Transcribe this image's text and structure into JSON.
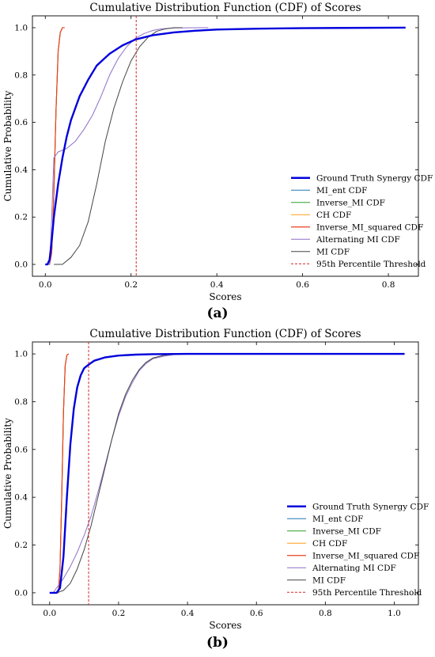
{
  "labels": {
    "panel_a": "(a)",
    "panel_b": "(b)"
  },
  "chart_data": [
    {
      "type": "line",
      "title": "Cumulative Distribution Function (CDF) of Scores",
      "xlabel": "Scores",
      "ylabel": "Cumulative Probability",
      "xlim": [
        -0.03,
        0.87
      ],
      "ylim": [
        -0.05,
        1.05
      ],
      "xticks": [
        0.0,
        0.2,
        0.4,
        0.6,
        0.8
      ],
      "xtick_labels": [
        "0.0",
        "0.2",
        "0.4",
        "0.6",
        "0.8"
      ],
      "yticks": [
        0.0,
        0.2,
        0.4,
        0.6,
        0.8,
        1.0
      ],
      "ytick_labels": [
        "0.0",
        "0.2",
        "0.4",
        "0.6",
        "0.8",
        "1.0"
      ],
      "grid": false,
      "legend_position": "lower right",
      "threshold": {
        "name": "95th Percentile Threshold",
        "x": 0.212,
        "color": "#d62728"
      },
      "series": [
        {
          "name": "Ground Truth Synergy CDF",
          "color": "#0000dd",
          "width": 2.4,
          "points": [
            [
              0.0,
              0.0
            ],
            [
              0.005,
              0.0
            ],
            [
              0.01,
              0.02
            ],
            [
              0.015,
              0.1
            ],
            [
              0.02,
              0.2
            ],
            [
              0.03,
              0.34
            ],
            [
              0.04,
              0.45
            ],
            [
              0.05,
              0.54
            ],
            [
              0.06,
              0.61
            ],
            [
              0.08,
              0.71
            ],
            [
              0.1,
              0.78
            ],
            [
              0.12,
              0.84
            ],
            [
              0.15,
              0.89
            ],
            [
              0.18,
              0.925
            ],
            [
              0.21,
              0.95
            ],
            [
              0.25,
              0.968
            ],
            [
              0.3,
              0.98
            ],
            [
              0.35,
              0.987
            ],
            [
              0.4,
              0.992
            ],
            [
              0.5,
              0.996
            ],
            [
              0.6,
              0.998
            ],
            [
              0.7,
              0.999
            ],
            [
              0.84,
              1.0
            ]
          ]
        },
        {
          "name": "MI_ent CDF",
          "color": "#1f77b4",
          "width": 1.0,
          "points": [
            [
              0.005,
              0.0
            ],
            [
              0.01,
              0.0
            ],
            [
              0.015,
              0.05
            ],
            [
              0.02,
              0.3
            ],
            [
              0.025,
              0.65
            ],
            [
              0.03,
              0.9
            ],
            [
              0.035,
              0.98
            ],
            [
              0.04,
              1.0
            ],
            [
              0.045,
              1.0
            ]
          ]
        },
        {
          "name": "Inverse_MI CDF",
          "color": "#2ca02c",
          "width": 1.0,
          "points": [
            [
              0.005,
              0.0
            ],
            [
              0.01,
              0.0
            ],
            [
              0.015,
              0.05
            ],
            [
              0.02,
              0.3
            ],
            [
              0.025,
              0.65
            ],
            [
              0.03,
              0.9
            ],
            [
              0.035,
              0.98
            ],
            [
              0.04,
              1.0
            ],
            [
              0.045,
              1.0
            ]
          ]
        },
        {
          "name": "CH CDF",
          "color": "#ff9f1c",
          "width": 1.0,
          "points": [
            [
              0.005,
              0.0
            ],
            [
              0.01,
              0.0
            ],
            [
              0.015,
              0.05
            ],
            [
              0.02,
              0.3
            ],
            [
              0.025,
              0.65
            ],
            [
              0.03,
              0.9
            ],
            [
              0.035,
              0.98
            ],
            [
              0.04,
              1.0
            ],
            [
              0.045,
              1.0
            ]
          ]
        },
        {
          "name": "Inverse_MI_squared CDF",
          "color": "#e8421c",
          "width": 1.2,
          "points": [
            [
              0.005,
              0.0
            ],
            [
              0.01,
              0.0
            ],
            [
              0.015,
              0.05
            ],
            [
              0.02,
              0.3
            ],
            [
              0.025,
              0.65
            ],
            [
              0.03,
              0.9
            ],
            [
              0.035,
              0.98
            ],
            [
              0.04,
              1.0
            ],
            [
              0.045,
              1.0
            ]
          ]
        },
        {
          "name": "Alternating MI CDF",
          "color": "#8e6fc8",
          "width": 1.0,
          "points": [
            [
              0.0,
              0.0
            ],
            [
              0.01,
              0.0
            ],
            [
              0.015,
              0.2
            ],
            [
              0.02,
              0.45
            ],
            [
              0.03,
              0.475
            ],
            [
              0.05,
              0.49
            ],
            [
              0.07,
              0.52
            ],
            [
              0.09,
              0.57
            ],
            [
              0.11,
              0.63
            ],
            [
              0.13,
              0.71
            ],
            [
              0.15,
              0.8
            ],
            [
              0.17,
              0.87
            ],
            [
              0.19,
              0.92
            ],
            [
              0.21,
              0.955
            ],
            [
              0.23,
              0.975
            ],
            [
              0.25,
              0.988
            ],
            [
              0.27,
              0.995
            ],
            [
              0.3,
              0.999
            ],
            [
              0.38,
              1.0
            ]
          ]
        },
        {
          "name": "MI CDF",
          "color": "#444444",
          "width": 1.0,
          "points": [
            [
              0.02,
              0.0
            ],
            [
              0.04,
              0.0
            ],
            [
              0.06,
              0.03
            ],
            [
              0.08,
              0.08
            ],
            [
              0.1,
              0.18
            ],
            [
              0.12,
              0.34
            ],
            [
              0.14,
              0.52
            ],
            [
              0.16,
              0.66
            ],
            [
              0.18,
              0.77
            ],
            [
              0.2,
              0.86
            ],
            [
              0.22,
              0.92
            ],
            [
              0.24,
              0.96
            ],
            [
              0.26,
              0.985
            ],
            [
              0.28,
              0.995
            ],
            [
              0.3,
              1.0
            ],
            [
              0.32,
              1.0
            ]
          ]
        }
      ]
    },
    {
      "type": "line",
      "title": "Cumulative Distribution Function (CDF) of Scores",
      "xlabel": "Scores",
      "ylabel": "Cumulative Probability",
      "xlim": [
        -0.05,
        1.07
      ],
      "ylim": [
        -0.05,
        1.05
      ],
      "xticks": [
        0.0,
        0.2,
        0.4,
        0.6,
        0.8,
        1.0
      ],
      "xtick_labels": [
        "0.0",
        "0.2",
        "0.4",
        "0.6",
        "0.8",
        "1.0"
      ],
      "yticks": [
        0.0,
        0.2,
        0.4,
        0.6,
        0.8,
        1.0
      ],
      "ytick_labels": [
        "0.0",
        "0.2",
        "0.4",
        "0.6",
        "0.8",
        "1.0"
      ],
      "grid": false,
      "legend_position": "lower right",
      "threshold": {
        "name": "95th Percentile Threshold",
        "x": 0.113,
        "color": "#d62728"
      },
      "series": [
        {
          "name": "Ground Truth Synergy CDF",
          "color": "#0000dd",
          "width": 2.4,
          "points": [
            [
              0.0,
              0.0
            ],
            [
              0.02,
              0.0
            ],
            [
              0.03,
              0.02
            ],
            [
              0.04,
              0.15
            ],
            [
              0.05,
              0.4
            ],
            [
              0.06,
              0.62
            ],
            [
              0.07,
              0.77
            ],
            [
              0.08,
              0.86
            ],
            [
              0.09,
              0.91
            ],
            [
              0.1,
              0.94
            ],
            [
              0.113,
              0.955
            ],
            [
              0.13,
              0.972
            ],
            [
              0.16,
              0.985
            ],
            [
              0.2,
              0.993
            ],
            [
              0.25,
              0.997
            ],
            [
              0.3,
              0.999
            ],
            [
              0.4,
              1.0
            ],
            [
              1.03,
              1.0
            ]
          ]
        },
        {
          "name": "MI_ent CDF",
          "color": "#1f77b4",
          "width": 1.0,
          "points": [
            [
              0.02,
              0.0
            ],
            [
              0.025,
              0.0
            ],
            [
              0.03,
              0.1
            ],
            [
              0.035,
              0.4
            ],
            [
              0.04,
              0.75
            ],
            [
              0.045,
              0.95
            ],
            [
              0.05,
              0.995
            ],
            [
              0.055,
              1.0
            ]
          ]
        },
        {
          "name": "Inverse_MI CDF",
          "color": "#2ca02c",
          "width": 1.0,
          "points": [
            [
              0.02,
              0.0
            ],
            [
              0.025,
              0.0
            ],
            [
              0.03,
              0.1
            ],
            [
              0.035,
              0.4
            ],
            [
              0.04,
              0.75
            ],
            [
              0.045,
              0.95
            ],
            [
              0.05,
              0.995
            ],
            [
              0.055,
              1.0
            ]
          ]
        },
        {
          "name": "CH CDF",
          "color": "#ff9f1c",
          "width": 1.0,
          "points": [
            [
              0.02,
              0.0
            ],
            [
              0.025,
              0.0
            ],
            [
              0.03,
              0.1
            ],
            [
              0.035,
              0.4
            ],
            [
              0.04,
              0.75
            ],
            [
              0.045,
              0.95
            ],
            [
              0.05,
              0.995
            ],
            [
              0.055,
              1.0
            ]
          ]
        },
        {
          "name": "Inverse_MI_squared CDF",
          "color": "#e8421c",
          "width": 1.2,
          "points": [
            [
              0.02,
              0.0
            ],
            [
              0.025,
              0.0
            ],
            [
              0.03,
              0.1
            ],
            [
              0.035,
              0.4
            ],
            [
              0.04,
              0.75
            ],
            [
              0.045,
              0.95
            ],
            [
              0.05,
              0.995
            ],
            [
              0.055,
              1.0
            ]
          ]
        },
        {
          "name": "Alternating MI CDF",
          "color": "#8e6fc8",
          "width": 1.0,
          "points": [
            [
              0.0,
              0.0
            ],
            [
              0.01,
              0.0
            ],
            [
              0.02,
              0.02
            ],
            [
              0.04,
              0.06
            ],
            [
              0.06,
              0.11
            ],
            [
              0.08,
              0.17
            ],
            [
              0.1,
              0.24
            ],
            [
              0.12,
              0.32
            ],
            [
              0.14,
              0.42
            ],
            [
              0.16,
              0.53
            ],
            [
              0.18,
              0.64
            ],
            [
              0.2,
              0.74
            ],
            [
              0.22,
              0.82
            ],
            [
              0.24,
              0.88
            ],
            [
              0.26,
              0.93
            ],
            [
              0.28,
              0.96
            ],
            [
              0.3,
              0.98
            ],
            [
              0.33,
              0.99
            ],
            [
              0.36,
              0.997
            ],
            [
              0.4,
              1.0
            ]
          ]
        },
        {
          "name": "MI CDF",
          "color": "#444444",
          "width": 1.0,
          "points": [
            [
              0.02,
              0.0
            ],
            [
              0.04,
              0.01
            ],
            [
              0.06,
              0.04
            ],
            [
              0.08,
              0.1
            ],
            [
              0.1,
              0.18
            ],
            [
              0.12,
              0.28
            ],
            [
              0.14,
              0.4
            ],
            [
              0.16,
              0.52
            ],
            [
              0.18,
              0.64
            ],
            [
              0.2,
              0.75
            ],
            [
              0.22,
              0.83
            ],
            [
              0.24,
              0.89
            ],
            [
              0.26,
              0.935
            ],
            [
              0.28,
              0.965
            ],
            [
              0.3,
              0.983
            ],
            [
              0.33,
              0.994
            ],
            [
              0.36,
              0.999
            ],
            [
              0.4,
              1.0
            ]
          ]
        }
      ]
    }
  ]
}
